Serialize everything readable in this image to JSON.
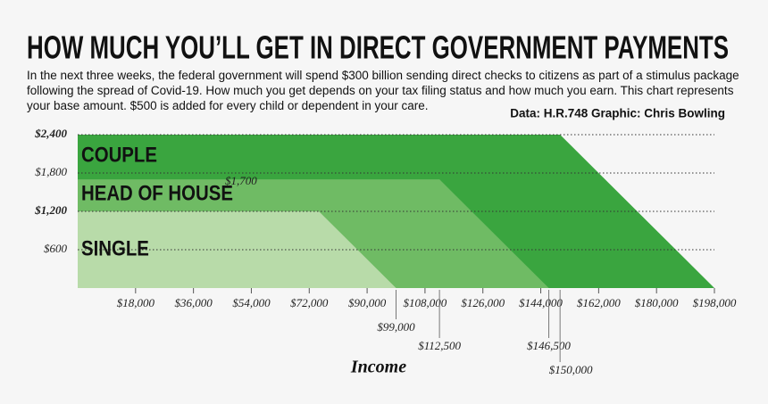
{
  "chart_data": {
    "type": "area",
    "title": "HOW MUCH YOU’LL GET IN DIRECT GOVERNMENT PAYMENTS",
    "subtitle": "In the next three weeks, the federal government will spend $300 billion sending direct checks to citizens as part of a stimulus package following the spread of Covid-19. How much you get depends on your tax filing status and how much you earn. This chart represents your base amount. $500 is added for every child or dependent in your care.",
    "source": "Data: H.R.748 Graphic: Chris Bowling",
    "x_label": "Income",
    "series": [
      {
        "name": "COUPLE",
        "color": "#3aa53f",
        "x": [
          0,
          150000,
          198000
        ],
        "values": [
          2400,
          2400,
          0
        ]
      },
      {
        "name": "HEAD OF HOUSE",
        "color": "#6fbb64",
        "x": [
          0,
          112500,
          146500
        ],
        "values": [
          1700,
          1700,
          0
        ]
      },
      {
        "name": "SINGLE",
        "color": "#b8dba9",
        "x": [
          0,
          75000,
          99000
        ],
        "values": [
          1200,
          1200,
          0
        ]
      }
    ],
    "y_annotation": {
      "value": 1700,
      "label": "$1,700"
    },
    "x_annotations": [
      {
        "value": 99000,
        "label": "$99,000"
      },
      {
        "value": 112500,
        "label": "$112,500"
      },
      {
        "value": 146500,
        "label": "$146,500"
      },
      {
        "value": 150000,
        "label": "$150,000"
      }
    ],
    "xlim": [
      0,
      198000
    ],
    "xticks": [
      {
        "value": 18000,
        "label": "$18,000"
      },
      {
        "value": 36000,
        "label": "$36,000"
      },
      {
        "value": 54000,
        "label": "$54,000"
      },
      {
        "value": 72000,
        "label": "$72,000"
      },
      {
        "value": 90000,
        "label": "$90,000"
      },
      {
        "value": 108000,
        "label": "$108,000"
      },
      {
        "value": 126000,
        "label": "$126,000"
      },
      {
        "value": 144000,
        "label": "$144,000"
      },
      {
        "value": 162000,
        "label": "$162,000"
      },
      {
        "value": 180000,
        "label": "$180,000"
      },
      {
        "value": 198000,
        "label": "$198,000"
      }
    ],
    "ylim": [
      0,
      2400
    ],
    "yticks": [
      {
        "value": 600,
        "label": "$600"
      },
      {
        "value": 1200,
        "label": "$1,200"
      },
      {
        "value": 1800,
        "label": "$1,800"
      },
      {
        "value": 2400,
        "label": "$2,400"
      }
    ],
    "grid": true
  }
}
